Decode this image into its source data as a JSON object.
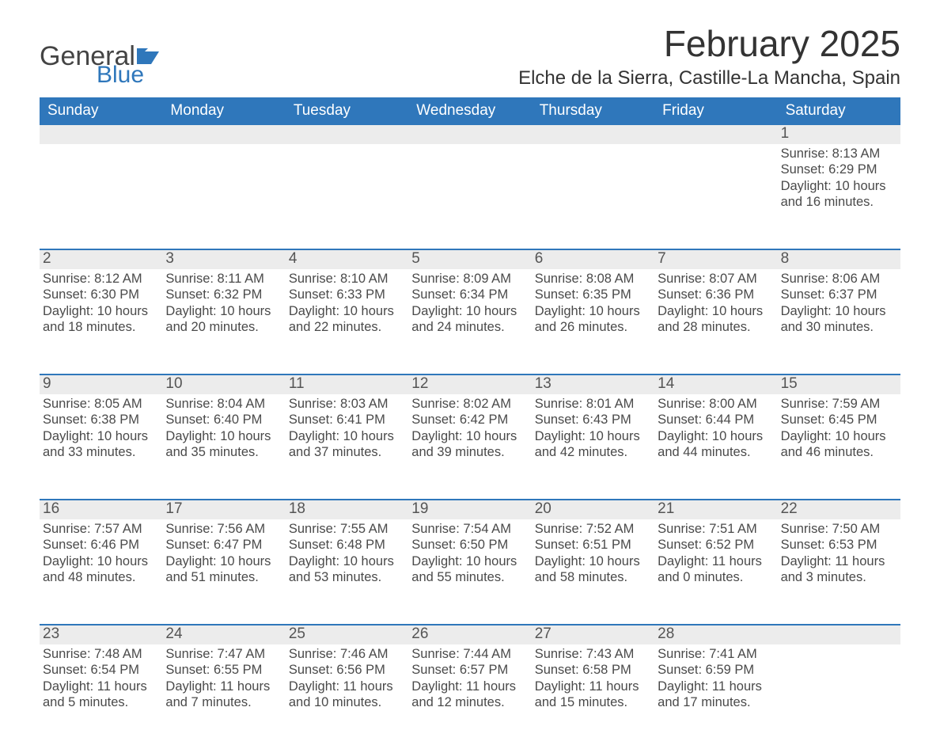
{
  "brand": {
    "word1": "General",
    "word2": "Blue",
    "flag_color": "#2f77bb"
  },
  "title": "February 2025",
  "location": "Elche de la Sierra, Castille-La Mancha, Spain",
  "colors": {
    "header_bg": "#2f77bb",
    "row_border": "#2f77bb",
    "daynum_bg": "#ececec",
    "text": "#333333",
    "body_text": "#4a4a4a",
    "page_bg": "#ffffff"
  },
  "typography": {
    "title_fontsize": 46,
    "location_fontsize": 24,
    "dow_fontsize": 19,
    "daynum_fontsize": 19,
    "body_fontsize": 16.5
  },
  "days_of_week": [
    "Sunday",
    "Monday",
    "Tuesday",
    "Wednesday",
    "Thursday",
    "Friday",
    "Saturday"
  ],
  "weeks": [
    [
      null,
      null,
      null,
      null,
      null,
      null,
      {
        "n": "1",
        "sunrise": "Sunrise: 8:13 AM",
        "sunset": "Sunset: 6:29 PM",
        "daylight": "Daylight: 10 hours and 16 minutes."
      }
    ],
    [
      {
        "n": "2",
        "sunrise": "Sunrise: 8:12 AM",
        "sunset": "Sunset: 6:30 PM",
        "daylight": "Daylight: 10 hours and 18 minutes."
      },
      {
        "n": "3",
        "sunrise": "Sunrise: 8:11 AM",
        "sunset": "Sunset: 6:32 PM",
        "daylight": "Daylight: 10 hours and 20 minutes."
      },
      {
        "n": "4",
        "sunrise": "Sunrise: 8:10 AM",
        "sunset": "Sunset: 6:33 PM",
        "daylight": "Daylight: 10 hours and 22 minutes."
      },
      {
        "n": "5",
        "sunrise": "Sunrise: 8:09 AM",
        "sunset": "Sunset: 6:34 PM",
        "daylight": "Daylight: 10 hours and 24 minutes."
      },
      {
        "n": "6",
        "sunrise": "Sunrise: 8:08 AM",
        "sunset": "Sunset: 6:35 PM",
        "daylight": "Daylight: 10 hours and 26 minutes."
      },
      {
        "n": "7",
        "sunrise": "Sunrise: 8:07 AM",
        "sunset": "Sunset: 6:36 PM",
        "daylight": "Daylight: 10 hours and 28 minutes."
      },
      {
        "n": "8",
        "sunrise": "Sunrise: 8:06 AM",
        "sunset": "Sunset: 6:37 PM",
        "daylight": "Daylight: 10 hours and 30 minutes."
      }
    ],
    [
      {
        "n": "9",
        "sunrise": "Sunrise: 8:05 AM",
        "sunset": "Sunset: 6:38 PM",
        "daylight": "Daylight: 10 hours and 33 minutes."
      },
      {
        "n": "10",
        "sunrise": "Sunrise: 8:04 AM",
        "sunset": "Sunset: 6:40 PM",
        "daylight": "Daylight: 10 hours and 35 minutes."
      },
      {
        "n": "11",
        "sunrise": "Sunrise: 8:03 AM",
        "sunset": "Sunset: 6:41 PM",
        "daylight": "Daylight: 10 hours and 37 minutes."
      },
      {
        "n": "12",
        "sunrise": "Sunrise: 8:02 AM",
        "sunset": "Sunset: 6:42 PM",
        "daylight": "Daylight: 10 hours and 39 minutes."
      },
      {
        "n": "13",
        "sunrise": "Sunrise: 8:01 AM",
        "sunset": "Sunset: 6:43 PM",
        "daylight": "Daylight: 10 hours and 42 minutes."
      },
      {
        "n": "14",
        "sunrise": "Sunrise: 8:00 AM",
        "sunset": "Sunset: 6:44 PM",
        "daylight": "Daylight: 10 hours and 44 minutes."
      },
      {
        "n": "15",
        "sunrise": "Sunrise: 7:59 AM",
        "sunset": "Sunset: 6:45 PM",
        "daylight": "Daylight: 10 hours and 46 minutes."
      }
    ],
    [
      {
        "n": "16",
        "sunrise": "Sunrise: 7:57 AM",
        "sunset": "Sunset: 6:46 PM",
        "daylight": "Daylight: 10 hours and 48 minutes."
      },
      {
        "n": "17",
        "sunrise": "Sunrise: 7:56 AM",
        "sunset": "Sunset: 6:47 PM",
        "daylight": "Daylight: 10 hours and 51 minutes."
      },
      {
        "n": "18",
        "sunrise": "Sunrise: 7:55 AM",
        "sunset": "Sunset: 6:48 PM",
        "daylight": "Daylight: 10 hours and 53 minutes."
      },
      {
        "n": "19",
        "sunrise": "Sunrise: 7:54 AM",
        "sunset": "Sunset: 6:50 PM",
        "daylight": "Daylight: 10 hours and 55 minutes."
      },
      {
        "n": "20",
        "sunrise": "Sunrise: 7:52 AM",
        "sunset": "Sunset: 6:51 PM",
        "daylight": "Daylight: 10 hours and 58 minutes."
      },
      {
        "n": "21",
        "sunrise": "Sunrise: 7:51 AM",
        "sunset": "Sunset: 6:52 PM",
        "daylight": "Daylight: 11 hours and 0 minutes."
      },
      {
        "n": "22",
        "sunrise": "Sunrise: 7:50 AM",
        "sunset": "Sunset: 6:53 PM",
        "daylight": "Daylight: 11 hours and 3 minutes."
      }
    ],
    [
      {
        "n": "23",
        "sunrise": "Sunrise: 7:48 AM",
        "sunset": "Sunset: 6:54 PM",
        "daylight": "Daylight: 11 hours and 5 minutes."
      },
      {
        "n": "24",
        "sunrise": "Sunrise: 7:47 AM",
        "sunset": "Sunset: 6:55 PM",
        "daylight": "Daylight: 11 hours and 7 minutes."
      },
      {
        "n": "25",
        "sunrise": "Sunrise: 7:46 AM",
        "sunset": "Sunset: 6:56 PM",
        "daylight": "Daylight: 11 hours and 10 minutes."
      },
      {
        "n": "26",
        "sunrise": "Sunrise: 7:44 AM",
        "sunset": "Sunset: 6:57 PM",
        "daylight": "Daylight: 11 hours and 12 minutes."
      },
      {
        "n": "27",
        "sunrise": "Sunrise: 7:43 AM",
        "sunset": "Sunset: 6:58 PM",
        "daylight": "Daylight: 11 hours and 15 minutes."
      },
      {
        "n": "28",
        "sunrise": "Sunrise: 7:41 AM",
        "sunset": "Sunset: 6:59 PM",
        "daylight": "Daylight: 11 hours and 17 minutes."
      },
      null
    ]
  ]
}
